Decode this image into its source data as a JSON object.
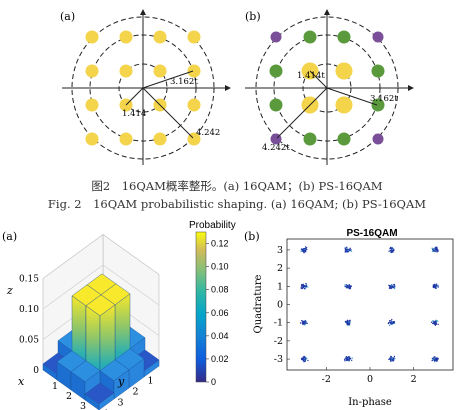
{
  "top_figure": {
    "panel_a": {
      "label": "(a)",
      "radius_labels": [
        "3.162t",
        "1.414",
        "4.242"
      ],
      "point_colors": [
        "#f4d44a"
      ]
    },
    "panel_b": {
      "label": "(b)",
      "radius_labels": [
        "1.414t",
        "3.162t",
        "4.242t"
      ],
      "colors": {
        "inner": "#f4d44a",
        "middle": "#5a9a3c",
        "outer": "#7a4f9a"
      }
    },
    "caption_cn": "图2　16QAM概率整形。(a) 16QAM；(b) PS-16QAM",
    "caption_en": "Fig. 2　16QAM probabilistic shaping. (a) 16QAM; (b) PS-16QAM"
  },
  "bottom_left": {
    "label": "(a)",
    "z_axis_label": "z",
    "x_axis_label": "x",
    "y_axis_label": "y",
    "z_ticks": [
      "0",
      "0.05",
      "0.10",
      "0.15"
    ],
    "x_ticks": [
      "1",
      "2",
      "3",
      "4"
    ],
    "y_ticks": [
      "1",
      "2",
      "3",
      "4"
    ],
    "colorbar_title": "Probability",
    "colorbar_ticks": [
      "0",
      "0.02",
      "0.04",
      "0.06",
      "0.08",
      "0.10",
      "0.12"
    ]
  },
  "bottom_right": {
    "label": "(b)",
    "title": "PS-16QAM",
    "xlabel": "In-phase",
    "ylabel": "Quadrature",
    "x_ticks": [
      "-2",
      "0",
      "2"
    ],
    "y_ticks": [
      "-3",
      "-2",
      "-1",
      "0",
      "1",
      "2",
      "3"
    ]
  },
  "chart_data": [
    {
      "type": "bar",
      "title": "",
      "xlabel": "x",
      "ylabel": "y",
      "zlabel": "z",
      "categories_x": [
        "1",
        "2",
        "3",
        "4"
      ],
      "categories_y": [
        "1",
        "2",
        "3",
        "4"
      ],
      "values": [
        [
          0.01,
          0.03,
          0.03,
          0.01
        ],
        [
          0.03,
          0.12,
          0.12,
          0.03
        ],
        [
          0.03,
          0.12,
          0.12,
          0.03
        ],
        [
          0.01,
          0.03,
          0.03,
          0.01
        ]
      ],
      "zlim": [
        0,
        0.15
      ],
      "colorbar_range": [
        0,
        0.13
      ]
    },
    {
      "type": "scatter",
      "title": "PS-16QAM",
      "xlabel": "In-phase",
      "ylabel": "Quadrature",
      "xlim": [
        -3.8,
        3.8
      ],
      "ylim": [
        -3.6,
        3.6
      ],
      "clusters": [
        [
          -3,
          3
        ],
        [
          -1,
          3
        ],
        [
          1,
          3
        ],
        [
          3,
          3
        ],
        [
          -3,
          1
        ],
        [
          -1,
          1
        ],
        [
          1,
          1
        ],
        [
          3,
          1
        ],
        [
          -3,
          -1
        ],
        [
          -1,
          -1
        ],
        [
          1,
          -1
        ],
        [
          3,
          -1
        ],
        [
          -3,
          -3
        ],
        [
          -1,
          -3
        ],
        [
          1,
          -3
        ],
        [
          3,
          -3
        ]
      ]
    }
  ]
}
